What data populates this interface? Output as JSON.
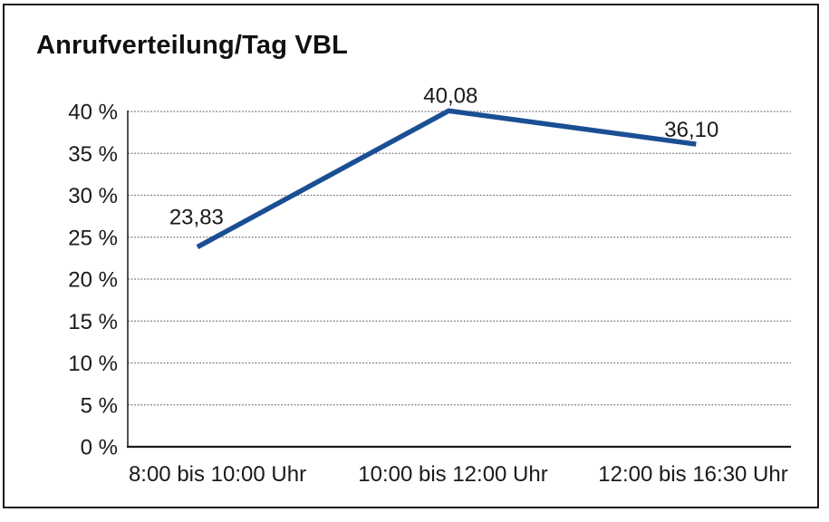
{
  "window": {
    "background_color": "#ffffff",
    "frame_border_color": "#1a1a1a"
  },
  "chart_data": {
    "type": "line",
    "title": "Anrufverteilung/Tag VBL",
    "categories": [
      "8:00 bis 10:00 Uhr",
      "10:00 bis 12:00 Uhr",
      "12:00 bis 16:30 Uhr"
    ],
    "values": [
      23.83,
      40.08,
      36.1
    ],
    "data_labels": [
      "23,83",
      "40,08",
      "36,10"
    ],
    "xlabel": "",
    "ylabel": "",
    "ylim": [
      0,
      40
    ],
    "y_tick_step": 5,
    "y_ticks": [
      {
        "value": 0,
        "label": "0 %"
      },
      {
        "value": 5,
        "label": "5 %"
      },
      {
        "value": 10,
        "label": "10 %"
      },
      {
        "value": 15,
        "label": "15 %"
      },
      {
        "value": 20,
        "label": "20 %"
      },
      {
        "value": 25,
        "label": "25 %"
      },
      {
        "value": 30,
        "label": "30 %"
      },
      {
        "value": 35,
        "label": "35 %"
      },
      {
        "value": 40,
        "label": "40 %"
      }
    ],
    "grid": "horizontal-dotted",
    "legend_position": "none",
    "line_color": "#1a4f94",
    "gridline_color": "#777777",
    "axis_color": "#1a1a1a",
    "text_color": "#1a1a1a"
  }
}
